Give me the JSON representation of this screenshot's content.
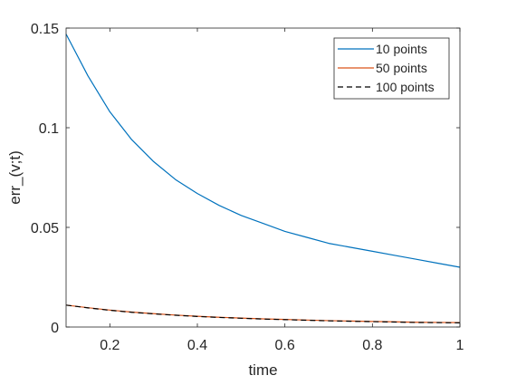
{
  "chart_data": {
    "type": "line",
    "title": "",
    "xlabel": "time",
    "ylabel": "err_(v;t)",
    "xlim": [
      0.1,
      1.0
    ],
    "ylim": [
      0,
      0.15
    ],
    "xticks": [
      0.2,
      0.4,
      0.6,
      0.8,
      1.0
    ],
    "xtick_labels": [
      "0.2",
      "0.4",
      "0.6",
      "0.8",
      "1"
    ],
    "yticks": [
      0,
      0.05,
      0.1,
      0.15
    ],
    "ytick_labels": [
      "0",
      "0.05",
      "0.1",
      "0.15"
    ],
    "grid": false,
    "legend_position": "top-right",
    "x": [
      0.1,
      0.15,
      0.2,
      0.25,
      0.3,
      0.35,
      0.4,
      0.45,
      0.5,
      0.55,
      0.6,
      0.65,
      0.7,
      0.75,
      0.8,
      0.85,
      0.9,
      0.95,
      1.0
    ],
    "series": [
      {
        "name": "10 points",
        "color": "#0072bd",
        "line_style": "solid",
        "values": [
          0.147,
          0.126,
          0.108,
          0.094,
          0.083,
          0.074,
          0.067,
          0.061,
          0.056,
          0.052,
          0.048,
          0.045,
          0.042,
          0.04,
          0.038,
          0.036,
          0.034,
          0.032,
          0.03
        ]
      },
      {
        "name": "50 points",
        "color": "#d95319",
        "line_style": "solid",
        "values": [
          0.011,
          0.0097,
          0.0085,
          0.0075,
          0.0067,
          0.006,
          0.0054,
          0.0049,
          0.0045,
          0.0041,
          0.0038,
          0.0035,
          0.0032,
          0.003,
          0.0028,
          0.0026,
          0.0024,
          0.0023,
          0.0022
        ]
      },
      {
        "name": "100 points",
        "color": "#000000",
        "line_style": "dashed",
        "values": [
          0.011,
          0.0096,
          0.0084,
          0.0074,
          0.0066,
          0.0059,
          0.0053,
          0.0048,
          0.0044,
          0.004,
          0.0037,
          0.0034,
          0.0031,
          0.0029,
          0.0027,
          0.0025,
          0.0023,
          0.0022,
          0.0021
        ]
      }
    ]
  }
}
